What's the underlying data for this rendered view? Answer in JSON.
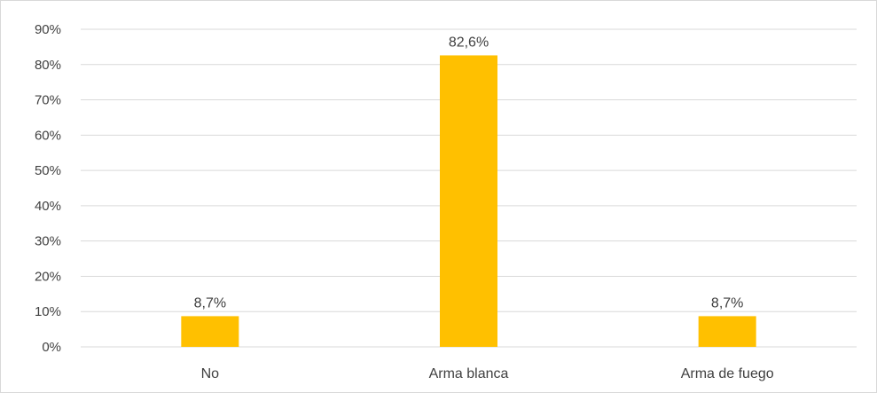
{
  "chart_data": {
    "type": "bar",
    "title": "",
    "xlabel": "",
    "ylabel": "",
    "categories": [
      "No",
      "Arma blanca",
      "Arma de fuego"
    ],
    "values": [
      8.7,
      82.6,
      8.7
    ],
    "data_labels": [
      "8,7%",
      "82,6%",
      "8,7%"
    ],
    "ylim": [
      0,
      90
    ],
    "y_ticks": [
      0,
      10,
      20,
      30,
      40,
      50,
      60,
      70,
      80,
      90
    ],
    "y_tick_labels": [
      "0%",
      "10%",
      "20%",
      "30%",
      "40%",
      "50%",
      "60%",
      "70%",
      "80%",
      "90%"
    ],
    "grid": true,
    "legend": "none",
    "bar_color": "#FFC000",
    "grid_color": "#d9d9d9",
    "text_color": "#404040"
  }
}
